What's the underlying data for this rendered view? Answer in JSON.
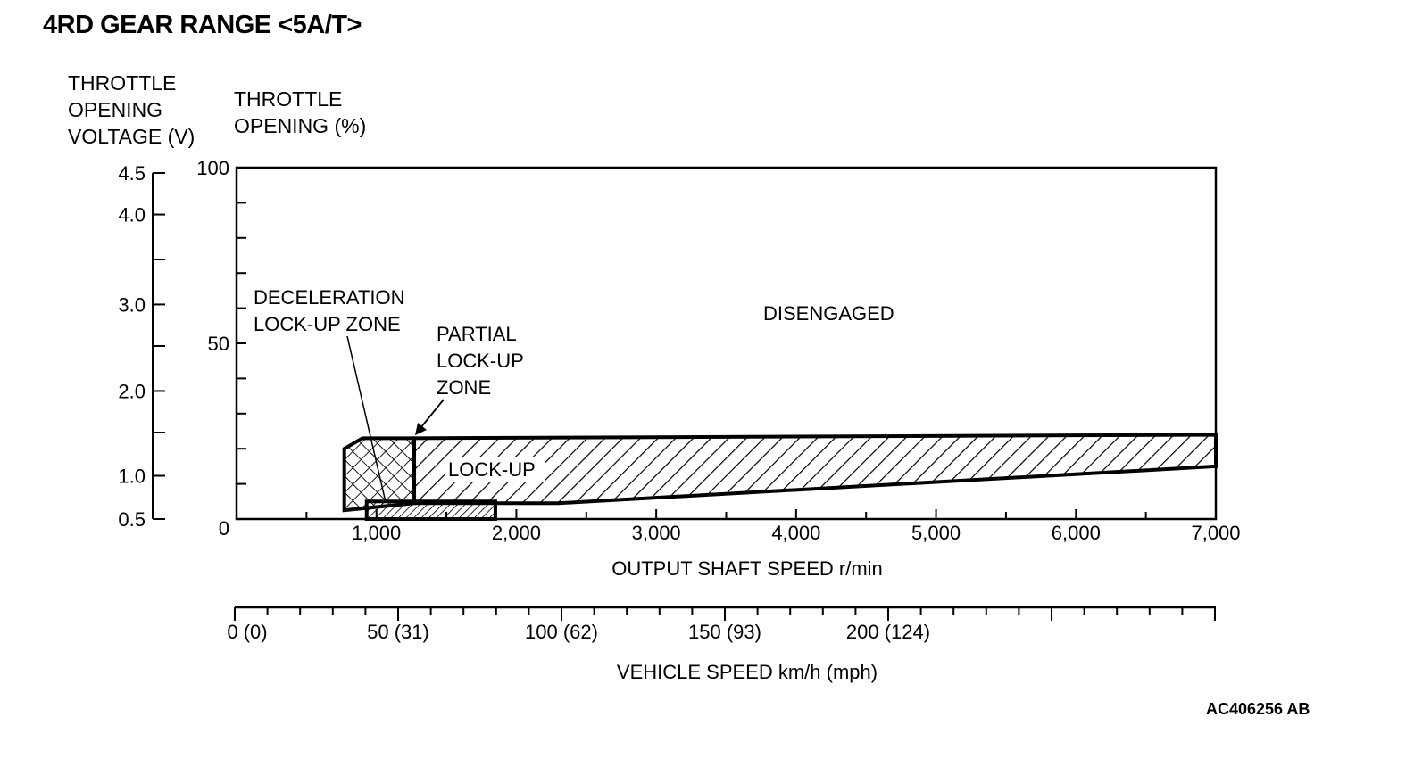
{
  "title": "4RD GEAR RANGE <5A/T>",
  "figure_code": "AC406256 AB",
  "chart_data": {
    "type": "area",
    "y_axis_voltage": {
      "title": "THROTTLE\nOPENING\nVOLTAGE (V)",
      "ticks": [
        {
          "value": 4.5,
          "label": "4.5",
          "pct": 100
        },
        {
          "value": 4.0,
          "label": "4.0",
          "pct": 88
        },
        {
          "value": 3.0,
          "label": "3.0",
          "pct": 62
        },
        {
          "value": 2.0,
          "label": "2.0",
          "pct": 37
        },
        {
          "value": 1.0,
          "label": "1.0",
          "pct": 12.5
        },
        {
          "value": 0.5,
          "label": "0.5",
          "pct": 0
        }
      ],
      "minor_pct": [
        75,
        50,
        25
      ]
    },
    "y_axis_percent": {
      "title": "THROTTLE\nOPENING (%)",
      "ylim": [
        0,
        100
      ],
      "ticks": [
        {
          "value": 100,
          "label": "100"
        },
        {
          "value": 50,
          "label": "50"
        },
        {
          "value": 0,
          "label": "0"
        }
      ],
      "minor": [
        10,
        20,
        30,
        40,
        60,
        70,
        80,
        90
      ]
    },
    "x_axis_output": {
      "title": "OUTPUT SHAFT SPEED r/min",
      "xlim": [
        0,
        7000
      ],
      "ticks": [
        {
          "value": 1000,
          "label": "1,000"
        },
        {
          "value": 2000,
          "label": "2,000"
        },
        {
          "value": 3000,
          "label": "3,000"
        },
        {
          "value": 4000,
          "label": "4,000"
        },
        {
          "value": 5000,
          "label": "5,000"
        },
        {
          "value": 6000,
          "label": "6,000"
        },
        {
          "value": 7000,
          "label": "7,000"
        }
      ],
      "minor": [
        500,
        1500,
        2500,
        3500,
        4500,
        5500,
        6500
      ]
    },
    "x_axis_vehicle": {
      "title": "VEHICLE SPEED km/h (mph)",
      "range_kmh": [
        0,
        300
      ],
      "major_every_kmh": 50,
      "minor_every_kmh": 10,
      "labels": [
        {
          "value": 0,
          "label": "0 (0)"
        },
        {
          "value": 50,
          "label": "50 (31)"
        },
        {
          "value": 100,
          "label": "100 (62)"
        },
        {
          "value": 150,
          "label": "150 (93)"
        },
        {
          "value": 200,
          "label": "200 (124)"
        }
      ]
    },
    "regions": [
      {
        "name": "LOCK-UP",
        "pattern": "hatch",
        "points": [
          [
            1270,
            23
          ],
          [
            7000,
            24
          ],
          [
            7000,
            15
          ],
          [
            2300,
            4.5
          ],
          [
            1270,
            4.5
          ]
        ]
      },
      {
        "name": "PARTIAL LOCK-UP ZONE",
        "pattern": "crosshatch",
        "points": [
          [
            770,
            20
          ],
          [
            900,
            23
          ],
          [
            1270,
            23
          ],
          [
            1270,
            4.5
          ],
          [
            770,
            2.5
          ]
        ]
      },
      {
        "name": "DECELERATION LOCK-UP ZONE",
        "pattern": "fine-hatch",
        "points": [
          [
            930,
            5
          ],
          [
            1850,
            5
          ],
          [
            1850,
            0
          ],
          [
            930,
            0
          ]
        ]
      }
    ],
    "zone_labels": {
      "disengaged": "DISENGAGED",
      "lockup": "LOCK-UP",
      "partial": "PARTIAL\nLOCK-UP\nZONE",
      "decel": "DECELERATION\nLOCK-UP ZONE"
    },
    "grid": false
  }
}
